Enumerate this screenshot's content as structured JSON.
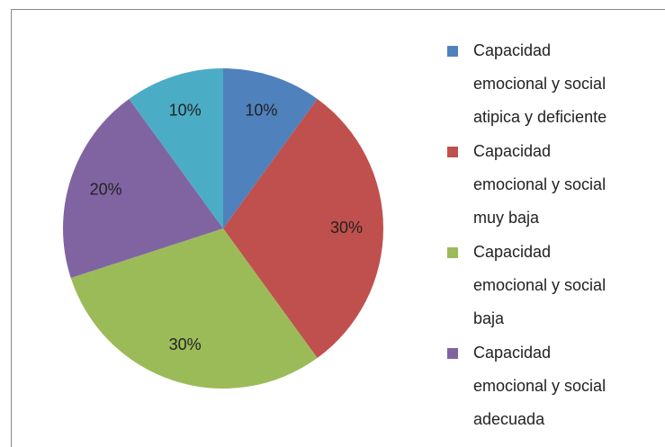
{
  "chart_data": {
    "type": "pie",
    "categories": [
      "Capacidad emocional y social atipica y deficiente",
      "Capacidad emocional y social muy baja",
      "Capacidad emocional y social baja",
      "Capacidad emocional y social adecuada",
      null
    ],
    "values": [
      10,
      30,
      30,
      20,
      10
    ],
    "value_labels": [
      "10%",
      "30%",
      "30%",
      "20%",
      "10%"
    ],
    "colors": [
      "#4f81bd",
      "#c0504d",
      "#9bbb59",
      "#8064a2",
      "#4bacc6"
    ],
    "legend": "right"
  }
}
